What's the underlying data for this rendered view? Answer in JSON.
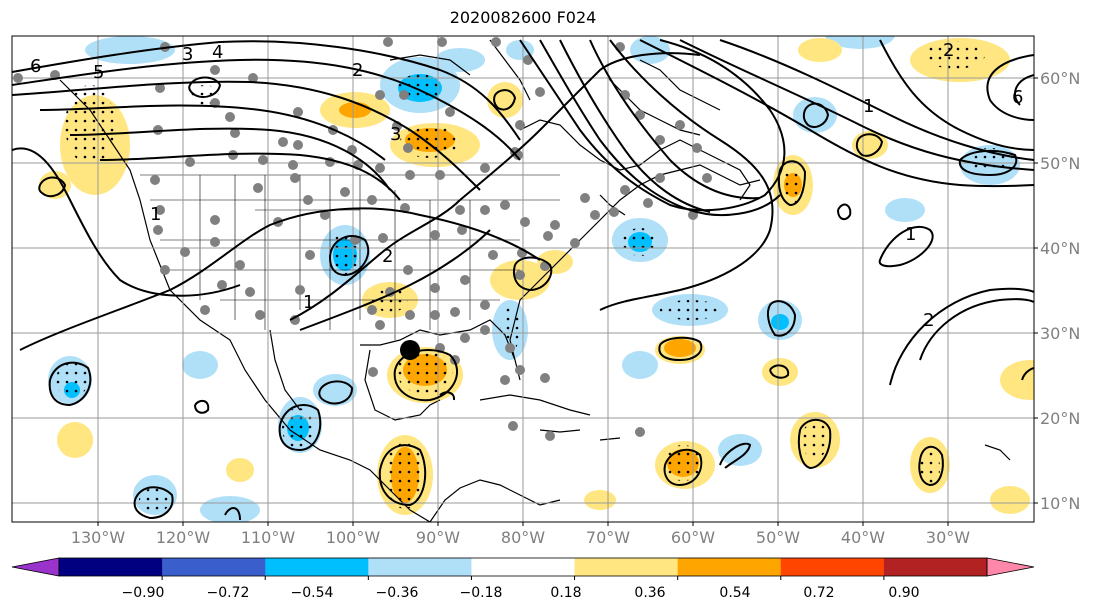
{
  "title": "2020082600 F024",
  "map": {
    "lat_ticks": [
      {
        "label": "60°N",
        "lat": 60
      },
      {
        "label": "50°N",
        "lat": 50
      },
      {
        "label": "40°N",
        "lat": 40
      },
      {
        "label": "30°N",
        "lat": 30
      },
      {
        "label": "20°N",
        "lat": 20
      },
      {
        "label": "10°N",
        "lat": 10
      }
    ],
    "lon_ticks": [
      {
        "label": "130°W",
        "lon": -130
      },
      {
        "label": "120°W",
        "lon": -120
      },
      {
        "label": "110°W",
        "lon": -110
      },
      {
        "label": "100°W",
        "lon": -100
      },
      {
        "label": "90°W",
        "lon": -90
      },
      {
        "label": "80°W",
        "lon": -80
      },
      {
        "label": "70°W",
        "lon": -70
      },
      {
        "label": "60°W",
        "lon": -60
      },
      {
        "label": "50°W",
        "lon": -50
      },
      {
        "label": "40°W",
        "lon": -40
      },
      {
        "label": "30°W",
        "lon": -30
      }
    ],
    "contour_labels": [
      "6",
      "5",
      "4",
      "3",
      "3",
      "2",
      "1",
      "2",
      "1",
      "6",
      "1",
      "2",
      "2",
      "1"
    ],
    "hurricane_marker": {
      "lat": 28.3,
      "lon": -93.2
    }
  },
  "colorbar": {
    "ticks": [
      "−0.90",
      "−0.72",
      "−0.54",
      "−0.36",
      "−0.18",
      "0.18",
      "0.36",
      "0.54",
      "0.72",
      "0.90"
    ],
    "colors": [
      "#9933cc",
      "#000080",
      "#3a5fcd",
      "#00bfff",
      "#b0e0f8",
      "#ffffff",
      "#ffe680",
      "#ffa500",
      "#ff4500",
      "#b22222",
      "#ff88aa"
    ]
  }
}
